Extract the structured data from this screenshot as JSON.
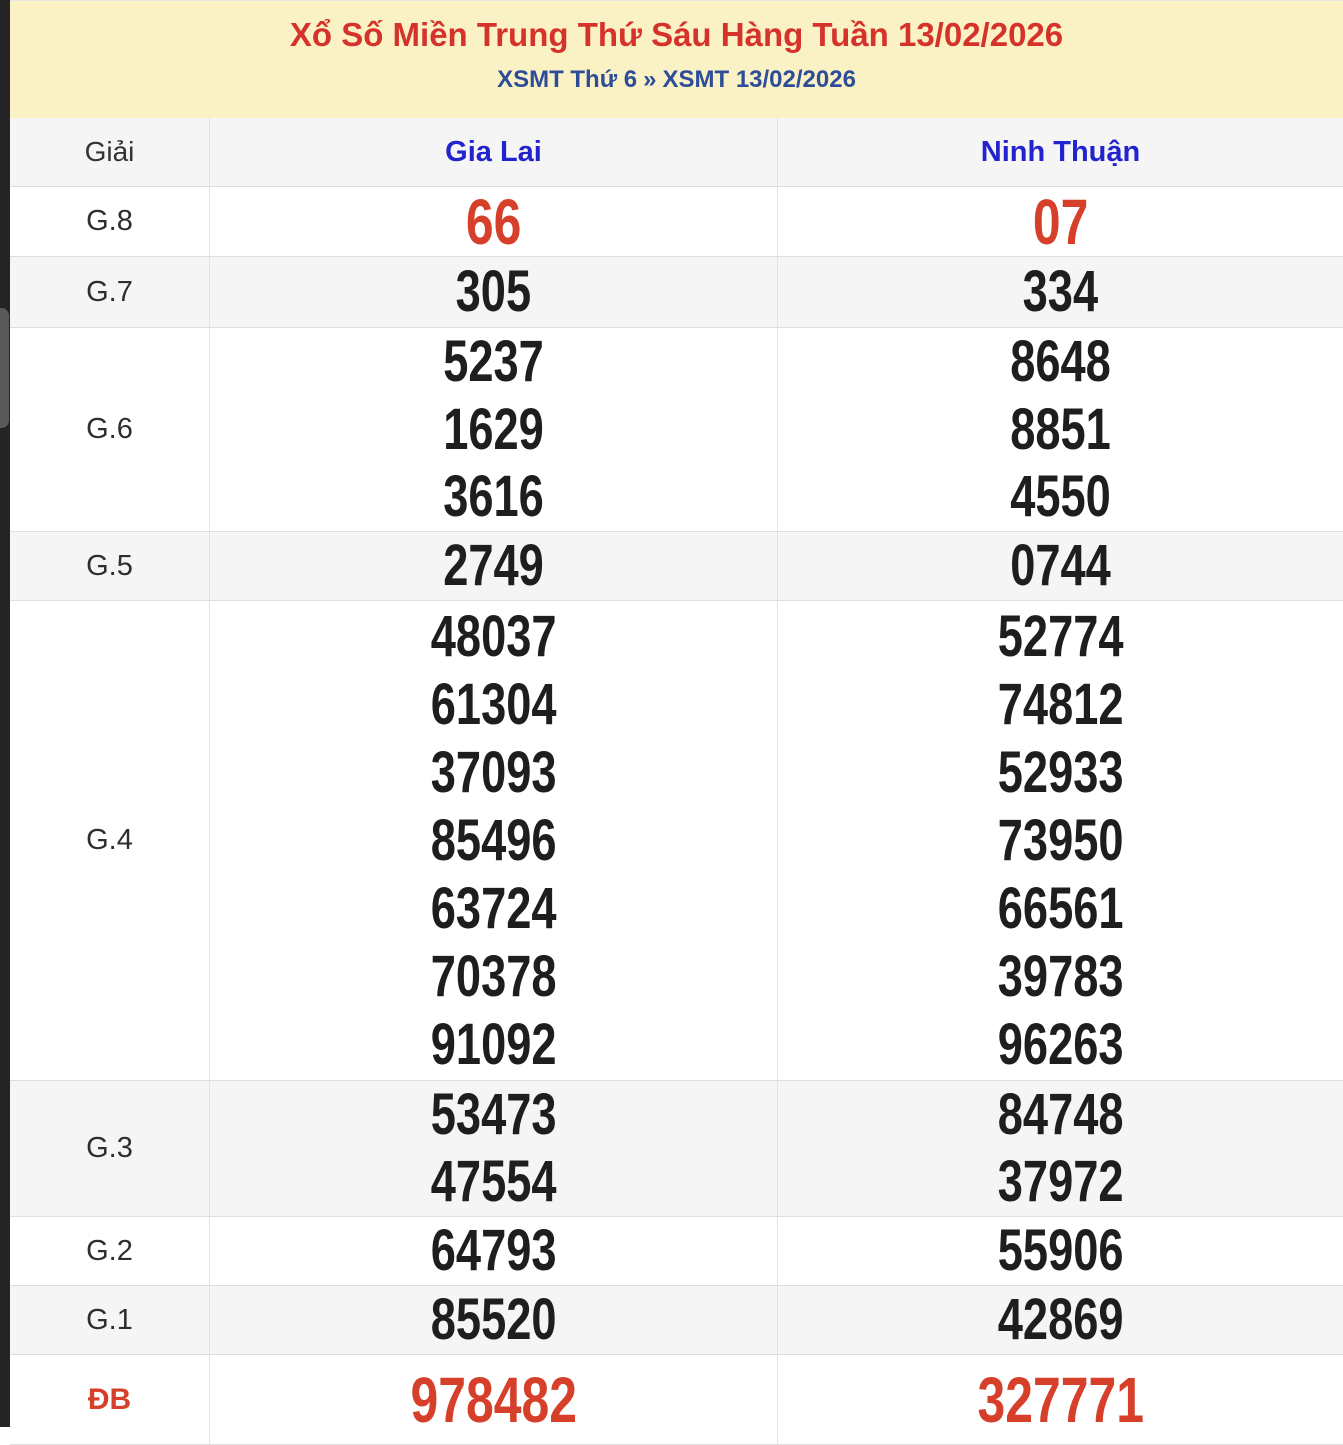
{
  "header": {
    "title": "Xổ Số Miền Trung Thứ Sáu Hàng Tuần 13/02/2026",
    "breadcrumb": {
      "left": "XSMT Thứ 6",
      "separator": "»",
      "right": "XSMT 13/02/2026"
    }
  },
  "table": {
    "prize_column_header": "Giải",
    "provinces": [
      "Gia Lai",
      "Ninh Thuận"
    ],
    "rows": [
      {
        "prize": "G.8",
        "highlight": true,
        "values": [
          [
            "66"
          ],
          [
            "07"
          ]
        ]
      },
      {
        "prize": "G.7",
        "highlight": false,
        "values": [
          [
            "305"
          ],
          [
            "334"
          ]
        ]
      },
      {
        "prize": "G.6",
        "highlight": false,
        "values": [
          [
            "5237",
            "1629",
            "3616"
          ],
          [
            "8648",
            "8851",
            "4550"
          ]
        ]
      },
      {
        "prize": "G.5",
        "highlight": false,
        "values": [
          [
            "2749"
          ],
          [
            "0744"
          ]
        ]
      },
      {
        "prize": "G.4",
        "highlight": false,
        "values": [
          [
            "48037",
            "61304",
            "37093",
            "85496",
            "63724",
            "70378",
            "91092"
          ],
          [
            "52774",
            "74812",
            "52933",
            "73950",
            "66561",
            "39783",
            "96263"
          ]
        ]
      },
      {
        "prize": "G.3",
        "highlight": false,
        "values": [
          [
            "53473",
            "47554"
          ],
          [
            "84748",
            "37972"
          ]
        ]
      },
      {
        "prize": "G.2",
        "highlight": false,
        "values": [
          [
            "64793"
          ],
          [
            "55906"
          ]
        ]
      },
      {
        "prize": "G.1",
        "highlight": false,
        "values": [
          [
            "85520"
          ],
          [
            "42869"
          ]
        ]
      },
      {
        "prize": "ĐB",
        "highlight": true,
        "values": [
          [
            "978482"
          ],
          [
            "327771"
          ]
        ]
      }
    ]
  },
  "colors": {
    "banner_bg": "#faf1c4",
    "title_red": "#d4322a",
    "number_red": "#d6402a",
    "province_blue": "#2222cf",
    "breadcrumb_blue": "#2d4d99",
    "row_alt_gray": "#f5f5f5"
  }
}
